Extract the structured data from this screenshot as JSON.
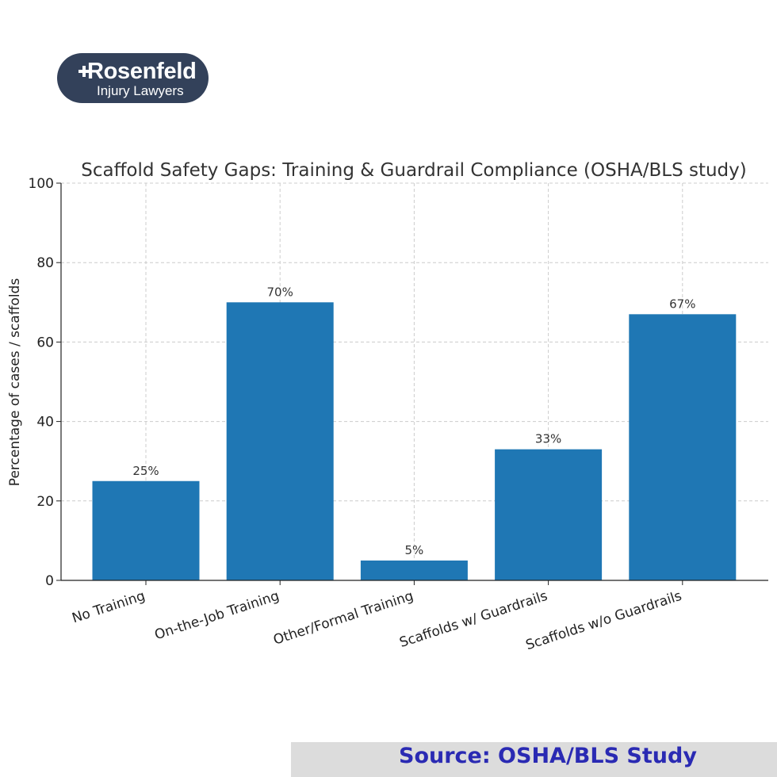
{
  "logo": {
    "brand": "Rosenfeld",
    "tagline": "Injury Lawyers"
  },
  "footer": {
    "source": "Source: OSHA/BLS Study"
  },
  "colors": {
    "bar": "#1f77b4",
    "logo_bg": "#33415a",
    "source_text": "#2a2ab3",
    "source_band": "#dcdcdc"
  },
  "chart_data": {
    "type": "bar",
    "title": "Scaffold Safety Gaps: Training & Guardrail Compliance (OSHA/BLS study)",
    "xlabel": "",
    "ylabel": "Percentage of cases / scaffolds",
    "categories": [
      "No Training",
      "On-the-Job Training",
      "Other/Formal Training",
      "Scaffolds w/ Guardrails",
      "Scaffolds w/o Guardrails"
    ],
    "values": [
      25,
      70,
      5,
      33,
      67
    ],
    "data_labels": [
      "25%",
      "70%",
      "5%",
      "33%",
      "67%"
    ],
    "ylim": [
      0,
      100
    ],
    "yticks": [
      0,
      20,
      40,
      60,
      80,
      100
    ],
    "grid": true
  }
}
